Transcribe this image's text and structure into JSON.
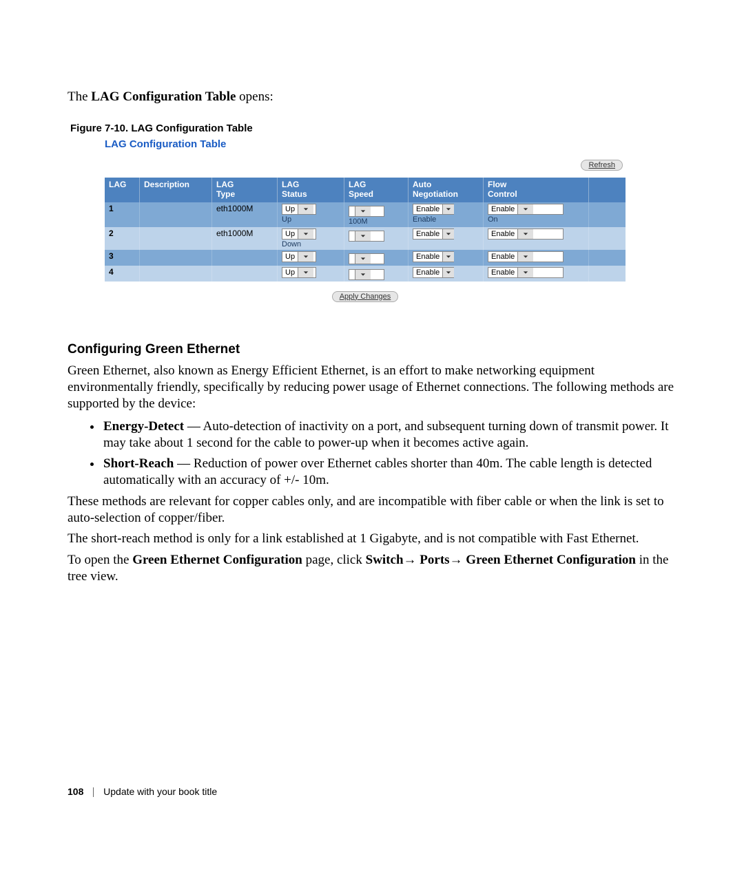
{
  "intro": {
    "prefix": "The ",
    "bold": "LAG Configuration Table",
    "suffix": " opens:"
  },
  "figure": {
    "caption": "Figure 7-10.   LAG Configuration Table",
    "title": "LAG Configuration Table",
    "refresh": "Refresh",
    "apply": "Apply Changes",
    "headers": {
      "lag": "LAG",
      "desc": "Description",
      "type": "LAG\nType",
      "status": "LAG\nStatus",
      "speed": "LAG\nSpeed",
      "auto": "Auto\nNegotiation",
      "flow": "Flow\nControl"
    },
    "rows": [
      {
        "id": "1",
        "desc": "",
        "type": "eth1000M",
        "status_sel": "Up",
        "status_sub": "Up",
        "speed_sel": "",
        "speed_sub": "100M",
        "auto_sel": "Enable",
        "auto_sub": "Enable",
        "flow_sel": "Enable",
        "flow_sub": "On",
        "dark": true
      },
      {
        "id": "2",
        "desc": "",
        "type": "eth1000M",
        "status_sel": "Up",
        "status_sub": "Down",
        "speed_sel": "",
        "speed_sub": "",
        "auto_sel": "Enable",
        "auto_sub": "",
        "flow_sel": "Enable",
        "flow_sub": "",
        "dark": false
      },
      {
        "id": "3",
        "desc": "",
        "type": "",
        "status_sel": "Up",
        "status_sub": "",
        "speed_sel": "",
        "speed_sub": "",
        "auto_sel": "Enable",
        "auto_sub": "",
        "flow_sel": "Enable",
        "flow_sub": "",
        "dark": true
      },
      {
        "id": "4",
        "desc": "",
        "type": "",
        "status_sel": "Up",
        "status_sub": "",
        "speed_sel": "",
        "speed_sub": "",
        "auto_sel": "Enable",
        "auto_sub": "",
        "flow_sel": "Enable",
        "flow_sub": "",
        "dark": false
      }
    ],
    "widths": {
      "status_sel": 50,
      "speed_sel": 52,
      "auto_sel": 60,
      "flow_sel": 110
    },
    "colors": {
      "header_bg": "#4d82bf",
      "row_dark": "#7fa9d4",
      "row_light": "#bdd3ea",
      "link": "#1a5cc4"
    }
  },
  "section": {
    "heading": "Configuring Green Ethernet",
    "p1": "Green Ethernet, also known as Energy Efficient Ethernet, is an effort to make networking equipment environmentally friendly, specifically by reducing power usage of Ethernet connections. The following methods are supported by the device:",
    "bullets": [
      {
        "bold": "Energy-Detect",
        "text": " — Auto-detection of inactivity on a port, and subsequent turning down of transmit power. It may take about 1 second for the cable to power-up when it becomes active again."
      },
      {
        "bold": "Short-Reach",
        "text": " — Reduction of power over Ethernet cables shorter than 40m. The cable length is detected automatically with an accuracy of +/- 10m."
      }
    ],
    "p2": "These methods are relevant for copper cables only, and are incompatible with fiber cable or when the link is set to auto-selection of copper/fiber.",
    "p3": "The short-reach method is only for a link established at 1 Gigabyte, and is not compatible with Fast Ethernet.",
    "p4_pre": "To open the ",
    "p4_b1": "Green Ethernet Configuration",
    "p4_mid": " page, click ",
    "p4_b2": "Switch",
    "p4_arrow": "→ ",
    "p4_b3": "Ports",
    "p4_b4": "Green Ethernet Configuration",
    "p4_post": " in the tree view."
  },
  "footer": {
    "page": "108",
    "title": "Update with your book title"
  }
}
